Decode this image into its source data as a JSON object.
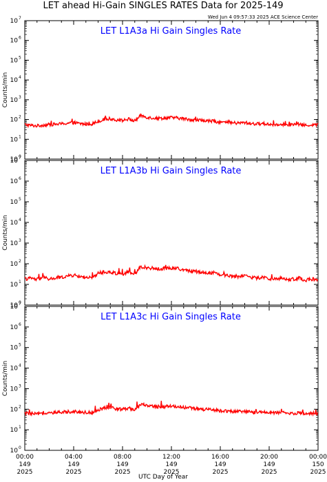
{
  "title": "LET ahead Hi-Gain SINGLES RATES Data for 2025-149",
  "timestamp": "Wed Jun  4 09:57:33 2025 ACE Science Center",
  "xlabel": "UTC Day of Year",
  "ylabel": "Counts/min",
  "colors": {
    "series": "#ff0000",
    "panel_title": "#0000ff",
    "axes": "#000000"
  },
  "x_ticks": [
    {
      "time": "00:00",
      "day": "149",
      "year": "2025",
      "hour": 0
    },
    {
      "time": "04:00",
      "day": "149",
      "year": "2025",
      "hour": 4
    },
    {
      "time": "08:00",
      "day": "149",
      "year": "2025",
      "hour": 8
    },
    {
      "time": "12:00",
      "day": "149",
      "year": "2025",
      "hour": 12
    },
    {
      "time": "16:00",
      "day": "149",
      "year": "2025",
      "hour": 16
    },
    {
      "time": "20:00",
      "day": "149",
      "year": "2025",
      "hour": 20
    },
    {
      "time": "00:00",
      "day": "150",
      "year": "2025",
      "hour": 24
    }
  ],
  "chart_data": [
    {
      "type": "line",
      "title": "LET L1A3a Hi Gain Singles Rate",
      "ylabel": "Counts/min",
      "xlabel": "UTC Day of Year",
      "yscale": "log",
      "ylim": [
        1,
        10000000
      ],
      "xlim_hours": [
        0,
        24
      ],
      "y_ticks": [
        {
          "base": "10",
          "exp": "0"
        },
        {
          "base": "10",
          "exp": "1"
        },
        {
          "base": "10",
          "exp": "2"
        },
        {
          "base": "10",
          "exp": "3"
        },
        {
          "base": "10",
          "exp": "4"
        },
        {
          "base": "10",
          "exp": "5"
        },
        {
          "base": "10",
          "exp": "6"
        },
        {
          "base": "10",
          "exp": "7"
        }
      ],
      "series": [
        {
          "x_hours": [
            0,
            0.5,
            1,
            1.5,
            2,
            2.5,
            3,
            3.5,
            4,
            4.5,
            5,
            5.5,
            6,
            6.5,
            7,
            7.5,
            8,
            8.5,
            9,
            9.5,
            10,
            10.5,
            11,
            11.5,
            12,
            12.5,
            13,
            13.5,
            14,
            14.5,
            15,
            15.5,
            16,
            16.5,
            17,
            17.5,
            18,
            18.5,
            19,
            19.5,
            20,
            20.5,
            21,
            21.5,
            22,
            22.5,
            23,
            23.5,
            24
          ],
          "values": [
            55,
            50,
            48,
            52,
            55,
            58,
            60,
            65,
            70,
            62,
            58,
            60,
            80,
            100,
            110,
            95,
            90,
            105,
            85,
            160,
            130,
            120,
            115,
            120,
            125,
            120,
            110,
            100,
            95,
            90,
            85,
            80,
            75,
            70,
            68,
            65,
            70,
            62,
            60,
            62,
            58,
            55,
            60,
            52,
            55,
            58,
            50,
            55,
            52
          ]
        }
      ]
    },
    {
      "type": "line",
      "title": "LET L1A3b Hi Gain Singles Rate",
      "ylabel": "Counts/min",
      "xlabel": "UTC Day of Year",
      "yscale": "log",
      "ylim": [
        1,
        10000000
      ],
      "xlim_hours": [
        0,
        24
      ],
      "y_ticks": [
        {
          "base": "10",
          "exp": "0"
        },
        {
          "base": "10",
          "exp": "1"
        },
        {
          "base": "10",
          "exp": "2"
        },
        {
          "base": "10",
          "exp": "3"
        },
        {
          "base": "10",
          "exp": "4"
        },
        {
          "base": "10",
          "exp": "5"
        },
        {
          "base": "10",
          "exp": "6"
        },
        {
          "base": "10",
          "exp": "7"
        }
      ],
      "series": [
        {
          "x_hours": [
            0,
            0.5,
            1,
            1.5,
            2,
            2.5,
            3,
            3.5,
            4,
            4.5,
            5,
            5.5,
            6,
            6.5,
            7,
            7.5,
            8,
            8.5,
            9,
            9.5,
            10,
            10.5,
            11,
            11.5,
            12,
            12.5,
            13,
            13.5,
            14,
            14.5,
            15,
            15.5,
            16,
            16.5,
            17,
            17.5,
            18,
            18.5,
            19,
            19.5,
            20,
            20.5,
            21,
            21.5,
            22,
            22.5,
            23,
            23.5,
            24
          ],
          "values": [
            18,
            20,
            17,
            22,
            18,
            20,
            22,
            25,
            28,
            24,
            22,
            20,
            35,
            40,
            38,
            35,
            32,
            40,
            30,
            70,
            65,
            60,
            55,
            60,
            62,
            58,
            50,
            45,
            42,
            40,
            35,
            38,
            30,
            28,
            25,
            24,
            28,
            22,
            20,
            22,
            19,
            18,
            20,
            17,
            18,
            20,
            16,
            18,
            17
          ]
        }
      ]
    },
    {
      "type": "line",
      "title": "LET L1A3c Hi Gain Singles Rate",
      "ylabel": "Counts/min",
      "xlabel": "UTC Day of Year",
      "yscale": "log",
      "ylim": [
        1,
        10000000
      ],
      "xlim_hours": [
        0,
        24
      ],
      "y_ticks": [
        {
          "base": "10",
          "exp": "0"
        },
        {
          "base": "10",
          "exp": "1"
        },
        {
          "base": "10",
          "exp": "2"
        },
        {
          "base": "10",
          "exp": "3"
        },
        {
          "base": "10",
          "exp": "4"
        },
        {
          "base": "10",
          "exp": "5"
        },
        {
          "base": "10",
          "exp": "6"
        },
        {
          "base": "10",
          "exp": "7"
        }
      ],
      "series": [
        {
          "x_hours": [
            0,
            0.5,
            1,
            1.5,
            2,
            2.5,
            3,
            3.5,
            4,
            4.5,
            5,
            5.5,
            6,
            6.5,
            7,
            7.5,
            8,
            8.5,
            9,
            9.5,
            10,
            10.5,
            11,
            11.5,
            12,
            12.5,
            13,
            13.5,
            14,
            14.5,
            15,
            15.5,
            16,
            16.5,
            17,
            17.5,
            18,
            18.5,
            19,
            19.5,
            20,
            20.5,
            21,
            21.5,
            22,
            22.5,
            23,
            23.5,
            24
          ],
          "values": [
            65,
            60,
            58,
            62,
            64,
            66,
            70,
            75,
            80,
            72,
            70,
            68,
            90,
            110,
            120,
            105,
            100,
            115,
            95,
            170,
            150,
            140,
            130,
            135,
            140,
            135,
            125,
            115,
            105,
            100,
            95,
            90,
            85,
            82,
            78,
            75,
            78,
            72,
            70,
            72,
            68,
            65,
            70,
            62,
            64,
            66,
            60,
            64,
            62
          ]
        }
      ]
    }
  ]
}
